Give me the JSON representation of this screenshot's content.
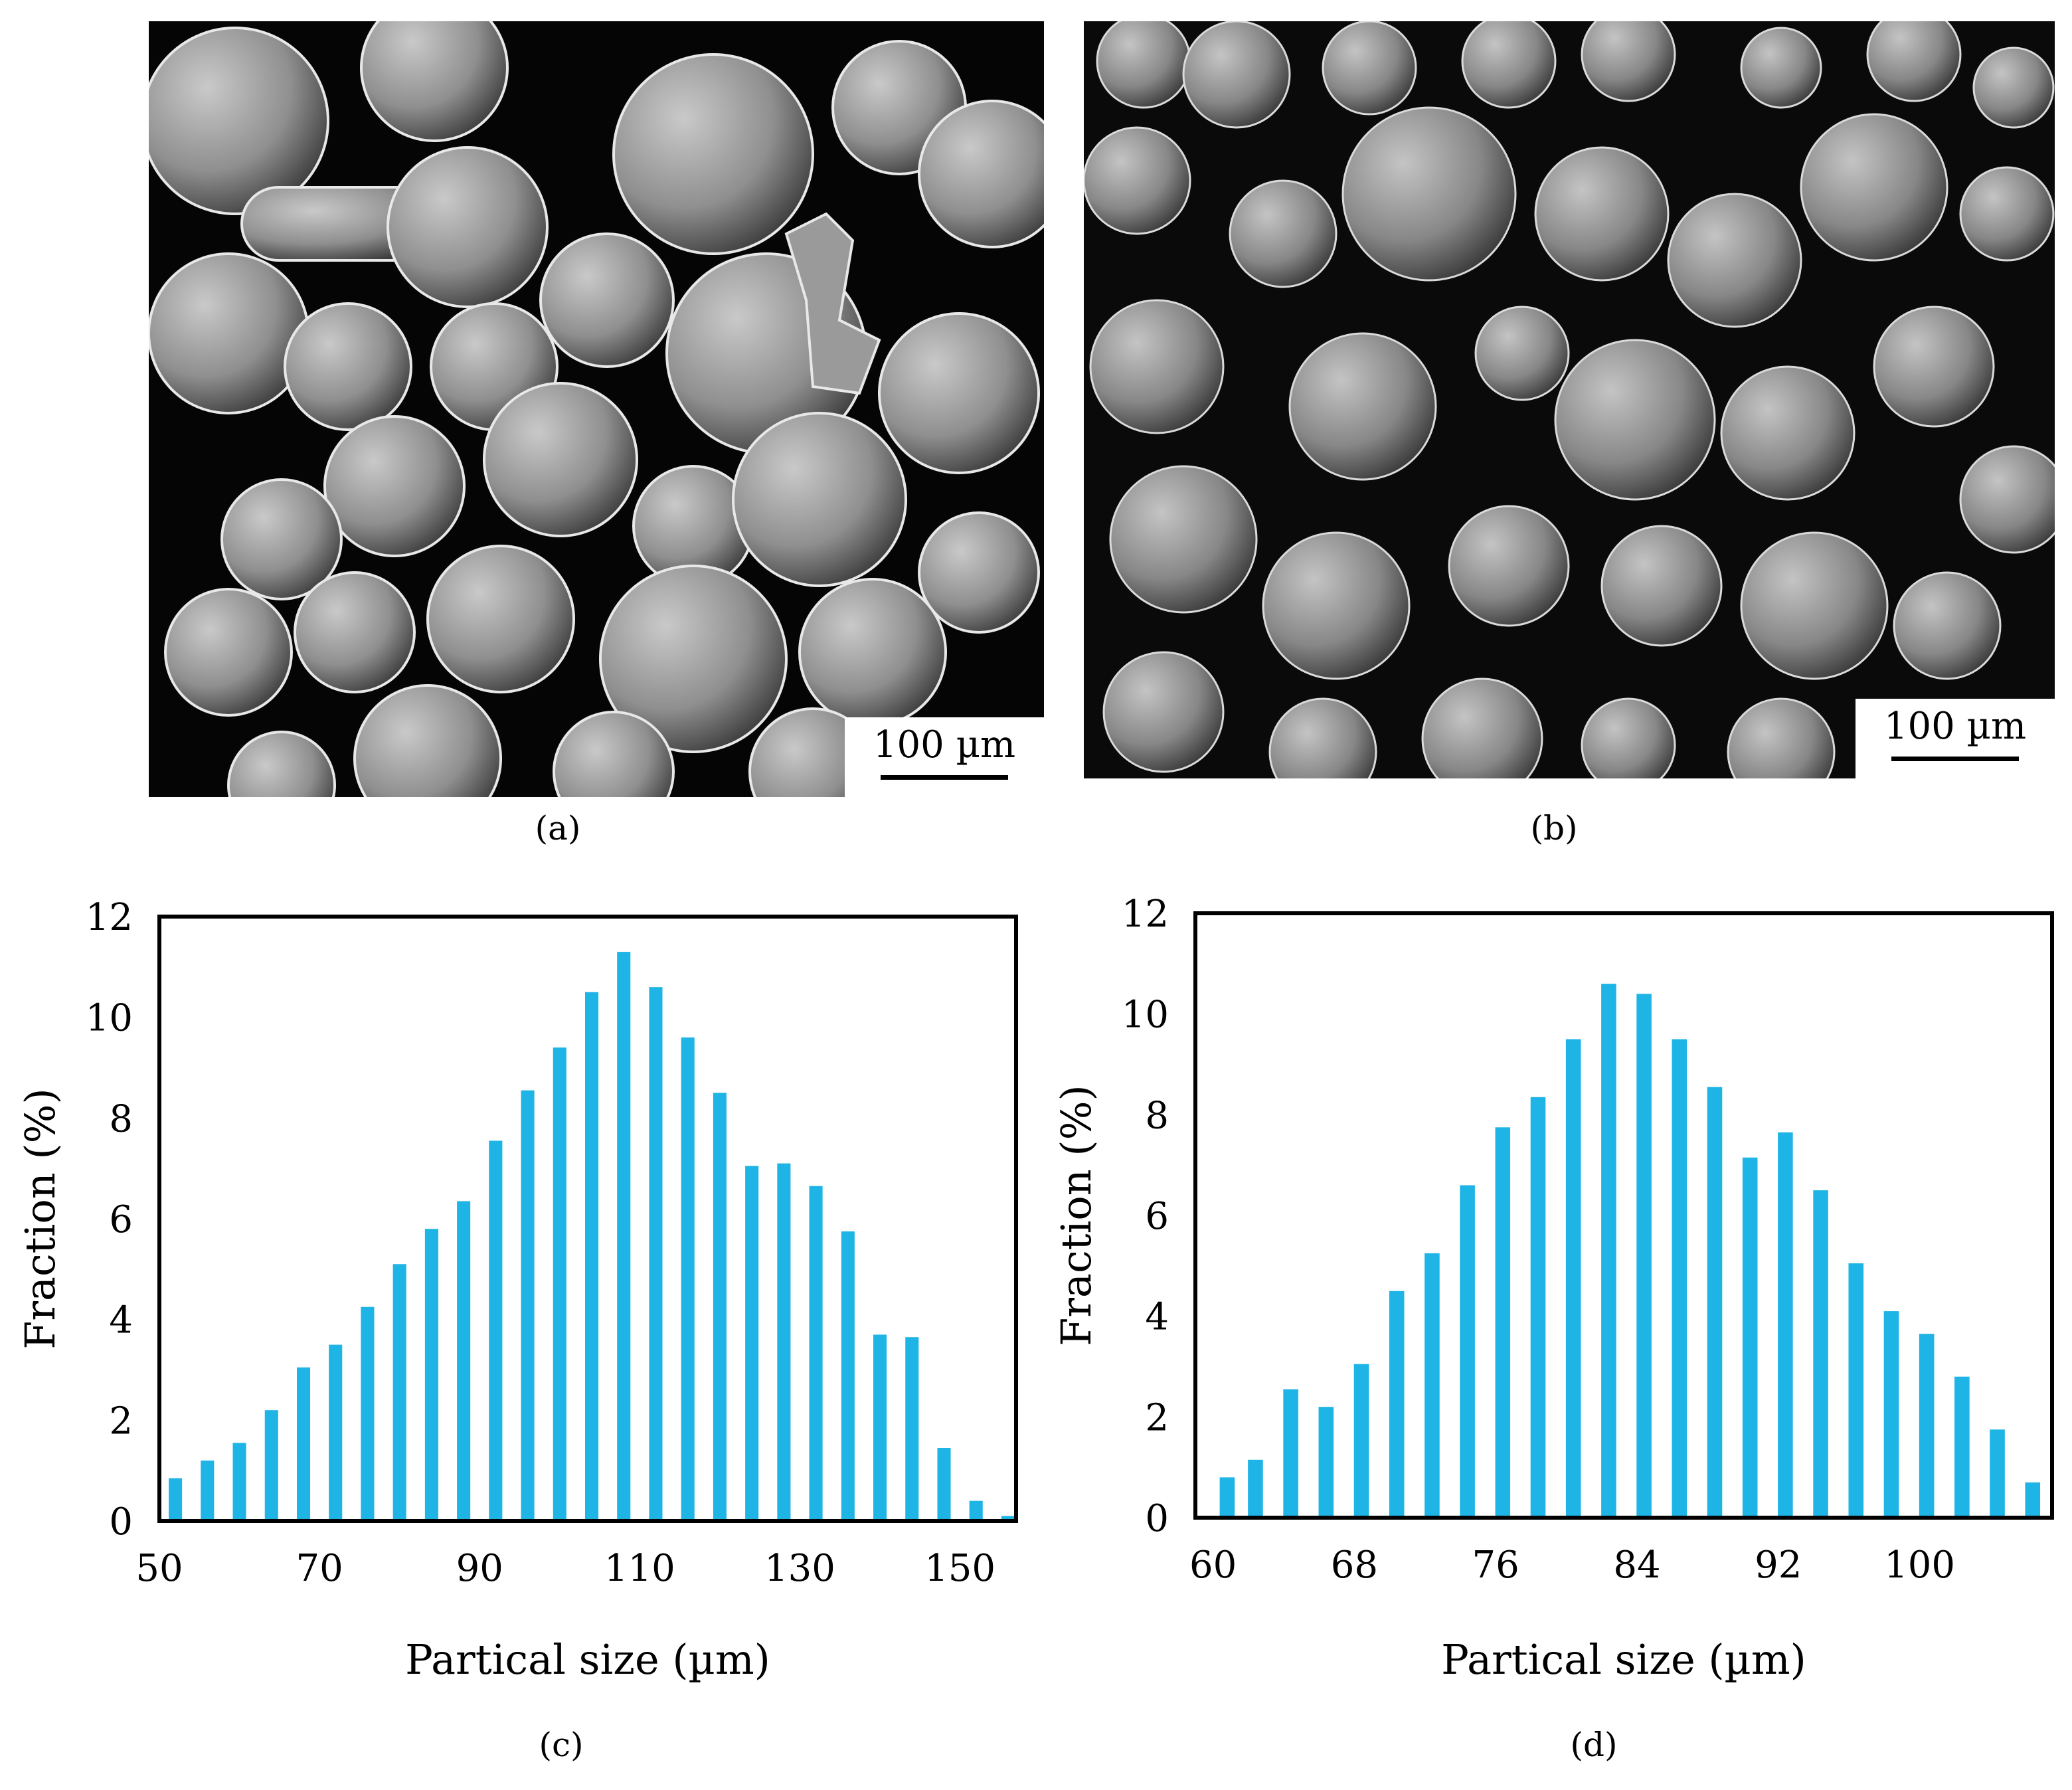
{
  "panels": {
    "a": {
      "caption": "(a)",
      "scalebar": "100 µm"
    },
    "b": {
      "caption": "(b)",
      "scalebar": "100 µm"
    },
    "c": {
      "caption": "(c)"
    },
    "d": {
      "caption": "(d)"
    }
  },
  "chart_data": [
    {
      "id": "c",
      "type": "bar",
      "title": "",
      "xlabel": "Partical size (µm)",
      "ylabel": "Fraction (%)",
      "ylim": [
        0,
        12
      ],
      "yticks": [
        0,
        2,
        4,
        6,
        8,
        10,
        12
      ],
      "xlim": [
        50,
        157
      ],
      "xticks": [
        50,
        70,
        90,
        110,
        130,
        150
      ],
      "grid": false,
      "legend": "none",
      "bar_color": "#1eb4e6",
      "x": [
        52,
        56,
        60,
        64,
        68,
        72,
        76,
        80,
        84,
        88,
        92,
        96,
        100,
        104,
        108,
        112,
        116,
        120,
        124,
        128,
        132,
        136,
        140,
        144,
        148,
        152,
        156
      ],
      "values": [
        0.85,
        1.2,
        1.55,
        2.2,
        3.05,
        3.5,
        4.25,
        5.1,
        5.8,
        6.35,
        7.55,
        8.55,
        9.4,
        10.5,
        11.3,
        10.6,
        9.6,
        8.5,
        7.05,
        7.1,
        6.65,
        5.75,
        3.7,
        3.65,
        1.45,
        0.4,
        0.1
      ]
    },
    {
      "id": "d",
      "type": "bar",
      "title": "",
      "xlabel": "Partical size (µm)",
      "ylabel": "Fraction (%)",
      "ylim": [
        0,
        12
      ],
      "yticks": [
        0,
        2,
        4,
        6,
        8,
        10,
        12
      ],
      "xlim": [
        59,
        107.5
      ],
      "xticks": [
        60,
        68,
        76,
        84,
        92,
        100
      ],
      "grid": false,
      "legend": "none",
      "bar_color": "#1eb4e6",
      "x": [
        60.8,
        62.4,
        64.4,
        66.4,
        68.4,
        70.4,
        72.4,
        74.4,
        76.4,
        78.4,
        80.4,
        82.4,
        84.4,
        86.4,
        88.4,
        90.4,
        92.4,
        94.4,
        96.4,
        98.4,
        100.4,
        102.4,
        104.4,
        106.4
      ],
      "values": [
        0.8,
        1.15,
        2.55,
        2.2,
        3.05,
        4.5,
        5.25,
        6.6,
        7.75,
        8.35,
        9.5,
        10.6,
        10.4,
        9.5,
        8.55,
        7.15,
        7.65,
        6.5,
        5.05,
        4.1,
        3.65,
        2.8,
        1.75,
        0.7
      ]
    }
  ]
}
